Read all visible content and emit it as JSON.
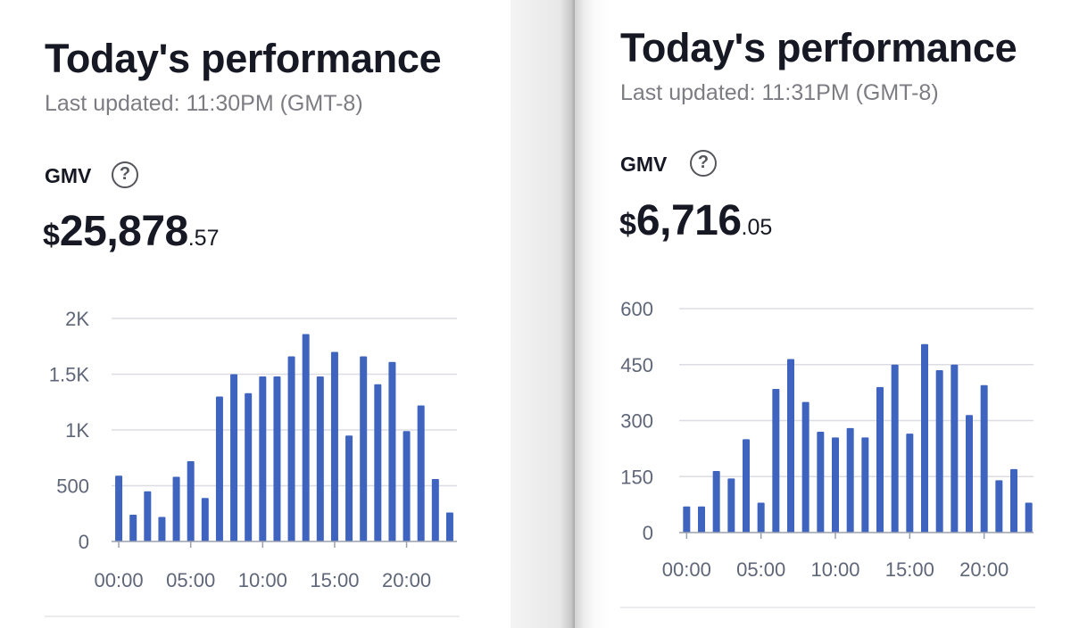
{
  "left": {
    "title": "Today's performance",
    "updated": "Last updated: 11:30PM (GMT-8)",
    "gmv_label": "GMV",
    "help_icon": "question-circle-icon",
    "amount": {
      "currency": "$",
      "integer": "25,878",
      "decimal": ".57"
    }
  },
  "right": {
    "title": "Today's performance",
    "updated": "Last updated: 11:31PM (GMT-8)",
    "gmv_label": "GMV",
    "help_icon": "question-circle-icon",
    "amount": {
      "currency": "$",
      "integer": "6,716",
      "decimal": ".05"
    }
  },
  "colors": {
    "bar": "#3e64c0",
    "grid": "#dcdde3",
    "axis_text": "#5f6678",
    "title": "#161823",
    "muted": "#7c7c83"
  },
  "chart_data": [
    {
      "type": "bar",
      "title": "",
      "xlabel": "",
      "ylabel": "",
      "x": [
        0,
        1,
        2,
        3,
        4,
        5,
        6,
        7,
        8,
        9,
        10,
        11,
        12,
        13,
        14,
        15,
        16,
        17,
        18,
        19,
        20,
        21,
        22,
        23
      ],
      "x_tick_labels": [
        "00:00",
        "05:00",
        "10:00",
        "15:00",
        "20:00"
      ],
      "x_tick_positions": [
        0,
        5,
        10,
        15,
        20
      ],
      "y_ticks": [
        0,
        500,
        1000,
        1500,
        2000
      ],
      "y_tick_labels": [
        "0",
        "500",
        "1K",
        "1.5K",
        "2K"
      ],
      "ylim": [
        0,
        2000
      ],
      "values": [
        590,
        240,
        450,
        220,
        580,
        720,
        390,
        1300,
        1500,
        1330,
        1480,
        1480,
        1660,
        1860,
        1480,
        1700,
        950,
        1660,
        1410,
        1610,
        990,
        1220,
        560,
        260
      ],
      "grid": true
    },
    {
      "type": "bar",
      "title": "",
      "xlabel": "",
      "ylabel": "",
      "x": [
        0,
        1,
        2,
        3,
        4,
        5,
        6,
        7,
        8,
        9,
        10,
        11,
        12,
        13,
        14,
        15,
        16,
        17,
        18,
        19,
        20,
        21,
        22,
        23
      ],
      "x_tick_labels": [
        "00:00",
        "05:00",
        "10:00",
        "15:00",
        "20:00"
      ],
      "x_tick_positions": [
        0,
        5,
        10,
        15,
        20
      ],
      "y_ticks": [
        0,
        150,
        300,
        450,
        600
      ],
      "y_tick_labels": [
        "0",
        "150",
        "300",
        "450",
        "600"
      ],
      "ylim": [
        0,
        600
      ],
      "values": [
        70,
        70,
        165,
        145,
        250,
        80,
        385,
        465,
        350,
        270,
        255,
        280,
        255,
        390,
        450,
        265,
        505,
        435,
        450,
        315,
        395,
        140,
        170,
        80
      ],
      "grid": true
    }
  ]
}
